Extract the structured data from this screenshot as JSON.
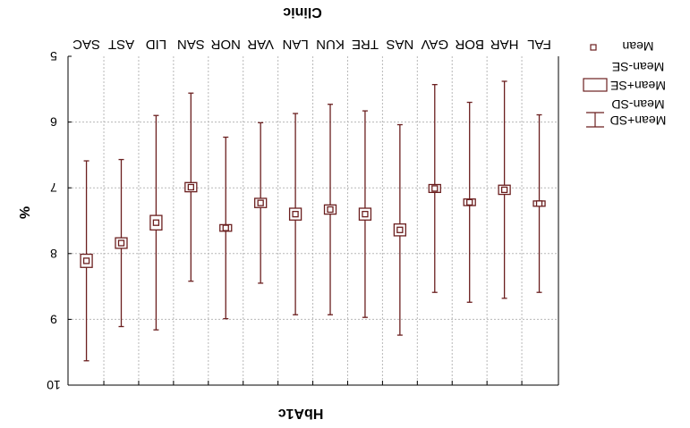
{
  "chart_data": {
    "type": "box",
    "title": "Clinic",
    "xlabel": "HbA1c",
    "ylabel": "%",
    "categories": [
      "FAL",
      "HAR",
      "BOR",
      "GAV",
      "NAS",
      "TRE",
      "KUN",
      "LAN",
      "VAR",
      "NOR",
      "SAN",
      "LID",
      "AST",
      "SAC"
    ],
    "y_axis_inverted": true,
    "ylim": [
      5,
      10
    ],
    "y_ticks": [
      5,
      6,
      7,
      8,
      9,
      10
    ],
    "grid": true,
    "legend_position": "right",
    "colors": {
      "marker": "#6b1f1f",
      "grid": "#b8b8b8",
      "frame": "#000000"
    },
    "legend": {
      "mean": "Mean",
      "box_top": "Mean-SE",
      "box_bottom": "Mean+SE",
      "whisker_top": "Mean-SD",
      "whisker_bottom": "Mean+SD"
    },
    "series": [
      {
        "category": "FAL",
        "mean": 7.24,
        "se": 0.04,
        "sd": 1.35
      },
      {
        "category": "HAR",
        "mean": 7.03,
        "se": 0.07,
        "sd": 1.65
      },
      {
        "category": "BOR",
        "mean": 7.22,
        "se": 0.05,
        "sd": 1.52
      },
      {
        "category": "GAV",
        "mean": 7.01,
        "se": 0.06,
        "sd": 1.58
      },
      {
        "category": "NAS",
        "mean": 7.64,
        "se": 0.09,
        "sd": 1.6
      },
      {
        "category": "TRE",
        "mean": 7.4,
        "se": 0.09,
        "sd": 1.57
      },
      {
        "category": "KUN",
        "mean": 7.33,
        "se": 0.07,
        "sd": 1.6
      },
      {
        "category": "LAN",
        "mean": 7.4,
        "se": 0.09,
        "sd": 1.53
      },
      {
        "category": "VAR",
        "mean": 7.23,
        "se": 0.07,
        "sd": 1.22
      },
      {
        "category": "NOR",
        "mean": 7.61,
        "se": 0.05,
        "sd": 1.38
      },
      {
        "category": "SAN",
        "mean": 6.99,
        "se": 0.07,
        "sd": 1.43
      },
      {
        "category": "LID",
        "mean": 7.53,
        "se": 0.11,
        "sd": 1.63
      },
      {
        "category": "AST",
        "mean": 7.84,
        "se": 0.08,
        "sd": 1.27
      },
      {
        "category": "SAC",
        "mean": 8.11,
        "se": 0.1,
        "sd": 1.52
      }
    ]
  }
}
